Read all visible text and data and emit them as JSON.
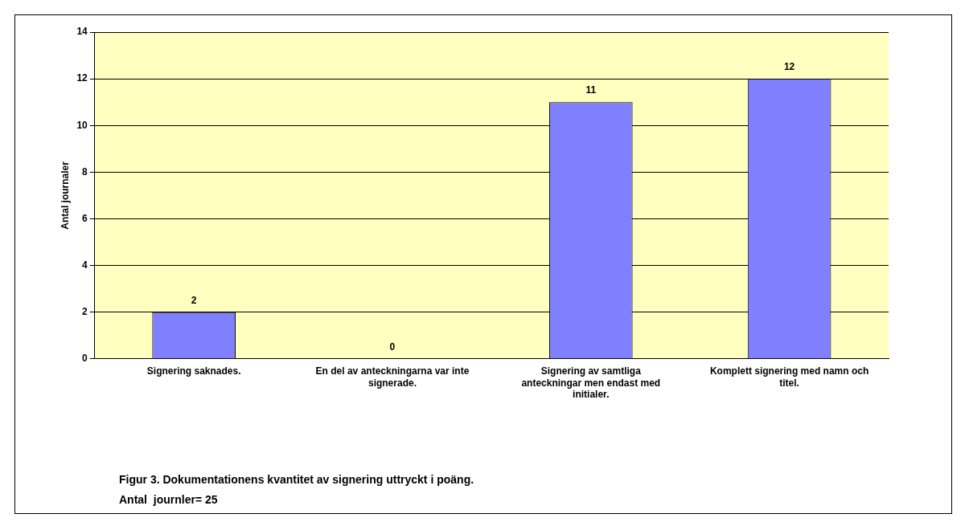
{
  "chart_data": {
    "type": "bar",
    "ylabel": "Antal journaler",
    "categories": [
      "Signering saknades.",
      "En del av anteckningarna var inte signerade.",
      "Signering av samtliga anteckningar men endast med initialer.",
      "Komplett signering med namn och titel."
    ],
    "values": [
      2,
      0,
      11,
      12
    ],
    "color": "#8080ff",
    "ylim": [
      0,
      14
    ],
    "yticks": [
      0,
      2,
      4,
      6,
      8,
      10,
      12,
      14
    ],
    "grid": "y",
    "data_labels": true,
    "legend": false,
    "annotations": [
      "Figur 3. Dokumentationens kvantitet av signering uttryckt i poäng.",
      "Antal  journler= 25"
    ]
  }
}
